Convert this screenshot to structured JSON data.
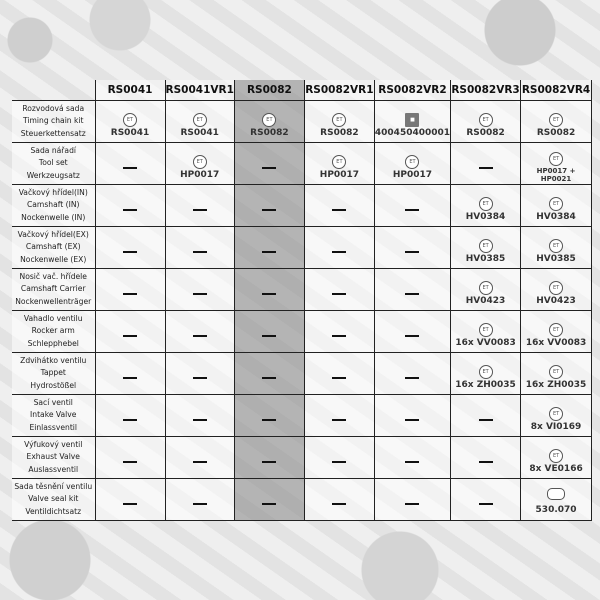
{
  "columns": [
    "RS0041",
    "RS0041VR1",
    "RS0082",
    "RS0082VR1",
    "RS0082VR2",
    "RS0082VR3",
    "RS0082VR4"
  ],
  "highlighted_column": "RS0082",
  "rows": [
    {
      "label": [
        "Rozvodová sada",
        "Timing chain kit",
        "Steuerkettensatz"
      ],
      "cells": [
        {
          "logo": "ET",
          "code": "RS0041"
        },
        {
          "logo": "ET",
          "code": "RS0041"
        },
        {
          "logo": "ET",
          "code": "RS0082"
        },
        {
          "logo": "ET",
          "code": "RS0082"
        },
        {
          "logo": "square",
          "code": "400450400001"
        },
        {
          "logo": "ET",
          "code": "RS0082"
        },
        {
          "logo": "ET",
          "code": "RS0082"
        }
      ]
    },
    {
      "label": [
        "Sada nářadí",
        "Tool set",
        "Werkzeugsatz"
      ],
      "cells": [
        null,
        {
          "logo": "ET",
          "code": "HP0017"
        },
        null,
        {
          "logo": "ET",
          "code": "HP0017"
        },
        {
          "logo": "ET",
          "code": "HP0017"
        },
        null,
        {
          "logo": "ET",
          "code": "HP0017 + HP0021"
        }
      ]
    },
    {
      "label": [
        "Vačkový hřídel(IN)",
        "Camshaft (IN)",
        "Nockenwelle (IN)"
      ],
      "cells": [
        null,
        null,
        null,
        null,
        null,
        {
          "logo": "ET",
          "code": "HV0384"
        },
        {
          "logo": "ET",
          "code": "HV0384"
        }
      ]
    },
    {
      "label": [
        "Vačkový hřídel(EX)",
        "Camshaft (EX)",
        "Nockenwelle (EX)"
      ],
      "cells": [
        null,
        null,
        null,
        null,
        null,
        {
          "logo": "ET",
          "code": "HV0385"
        },
        {
          "logo": "ET",
          "code": "HV0385"
        }
      ]
    },
    {
      "label": [
        "Nosič vač. hřídele",
        "Camshaft Carrier",
        "Nockenwellenträger"
      ],
      "cells": [
        null,
        null,
        null,
        null,
        null,
        {
          "logo": "ET",
          "code": "HV0423"
        },
        {
          "logo": "ET",
          "code": "HV0423"
        }
      ]
    },
    {
      "label": [
        "Vahadlo ventilu",
        "Rocker arm",
        "Schlepphebel"
      ],
      "cells": [
        null,
        null,
        null,
        null,
        null,
        {
          "logo": "ET",
          "code": "16x VV0083"
        },
        {
          "logo": "ET",
          "code": "16x VV0083"
        }
      ]
    },
    {
      "label": [
        "Zdvihátko ventilu",
        "Tappet",
        "Hydrostößel"
      ],
      "cells": [
        null,
        null,
        null,
        null,
        null,
        {
          "logo": "ET",
          "code": "16x ZH0035"
        },
        {
          "logo": "ET",
          "code": "16x ZH0035"
        }
      ]
    },
    {
      "label": [
        "Sací ventil",
        "Intake Valve",
        "Einlassventil"
      ],
      "cells": [
        null,
        null,
        null,
        null,
        null,
        null,
        {
          "logo": "ET",
          "code": "8x VI0169"
        }
      ]
    },
    {
      "label": [
        "Výfukový ventil",
        "Exhaust Valve",
        "Auslassventil"
      ],
      "cells": [
        null,
        null,
        null,
        null,
        null,
        null,
        {
          "logo": "ET",
          "code": "8x VE0166"
        }
      ]
    },
    {
      "label": [
        "Sada těsnění ventilu",
        "Valve seal kit",
        "Ventildichtsatz"
      ],
      "cells": [
        null,
        null,
        null,
        null,
        null,
        null,
        {
          "logo": "elring",
          "code": "530.070"
        }
      ]
    }
  ]
}
